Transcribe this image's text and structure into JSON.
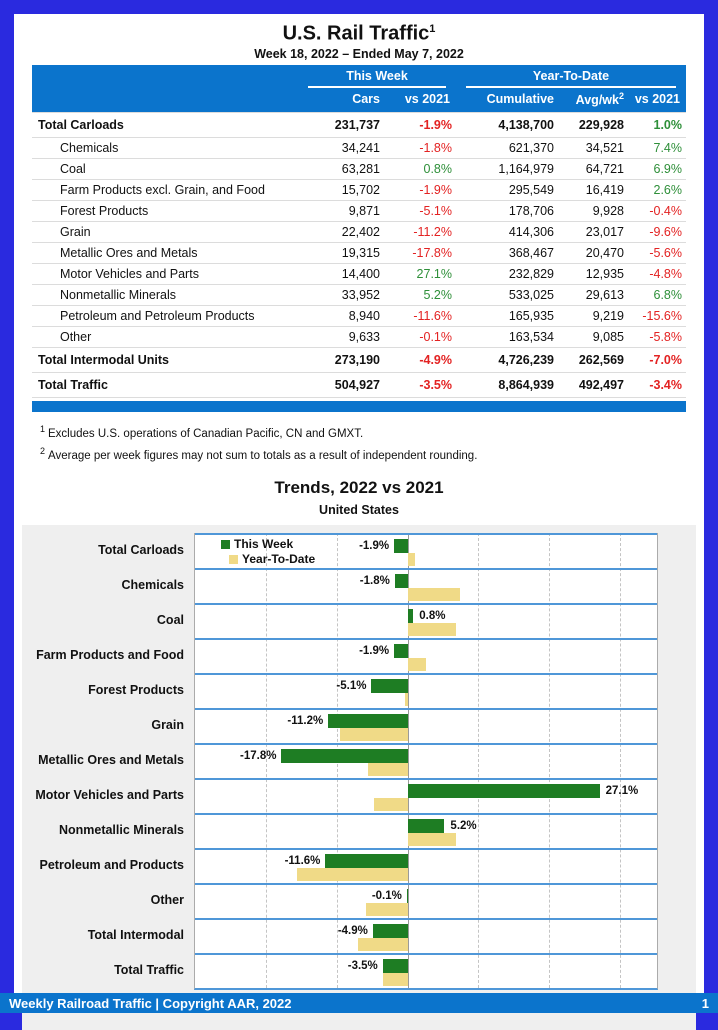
{
  "page": {
    "title": "U.S. Rail Traffic",
    "title_sup": "1",
    "subtitle": "Week 18, 2022 – Ended May 7, 2022"
  },
  "table": {
    "group_headers": {
      "this_week": "This Week",
      "year_to_date": "Year-To-Date"
    },
    "columns": {
      "cars": "Cars",
      "week_vs": "vs 2021",
      "cumulative": "Cumulative",
      "avg_wk": "Avg/wk",
      "avg_wk_sup": "2",
      "ytd_vs": "vs 2021"
    },
    "rows": [
      {
        "label": "Total Carloads",
        "bold": true,
        "indent": false,
        "cars": "231,737",
        "wk_pct": "-1.9%",
        "cumulative": "4,138,700",
        "avg_wk": "229,928",
        "ytd_pct": "1.0%"
      },
      {
        "label": "Chemicals",
        "bold": false,
        "indent": true,
        "cars": "34,241",
        "wk_pct": "-1.8%",
        "cumulative": "621,370",
        "avg_wk": "34,521",
        "ytd_pct": "7.4%"
      },
      {
        "label": "Coal",
        "bold": false,
        "indent": true,
        "cars": "63,281",
        "wk_pct": "0.8%",
        "cumulative": "1,164,979",
        "avg_wk": "64,721",
        "ytd_pct": "6.9%"
      },
      {
        "label": "Farm Products excl. Grain, and Food",
        "bold": false,
        "indent": true,
        "cars": "15,702",
        "wk_pct": "-1.9%",
        "cumulative": "295,549",
        "avg_wk": "16,419",
        "ytd_pct": "2.6%"
      },
      {
        "label": "Forest Products",
        "bold": false,
        "indent": true,
        "cars": "9,871",
        "wk_pct": "-5.1%",
        "cumulative": "178,706",
        "avg_wk": "9,928",
        "ytd_pct": "-0.4%"
      },
      {
        "label": "Grain",
        "bold": false,
        "indent": true,
        "cars": "22,402",
        "wk_pct": "-11.2%",
        "cumulative": "414,306",
        "avg_wk": "23,017",
        "ytd_pct": "-9.6%"
      },
      {
        "label": "Metallic Ores and Metals",
        "bold": false,
        "indent": true,
        "cars": "19,315",
        "wk_pct": "-17.8%",
        "cumulative": "368,467",
        "avg_wk": "20,470",
        "ytd_pct": "-5.6%"
      },
      {
        "label": "Motor Vehicles and Parts",
        "bold": false,
        "indent": true,
        "cars": "14,400",
        "wk_pct": "27.1%",
        "cumulative": "232,829",
        "avg_wk": "12,935",
        "ytd_pct": "-4.8%"
      },
      {
        "label": "Nonmetallic Minerals",
        "bold": false,
        "indent": true,
        "cars": "33,952",
        "wk_pct": "5.2%",
        "cumulative": "533,025",
        "avg_wk": "29,613",
        "ytd_pct": "6.8%"
      },
      {
        "label": "Petroleum and Petroleum Products",
        "bold": false,
        "indent": true,
        "cars": "8,940",
        "wk_pct": "-11.6%",
        "cumulative": "165,935",
        "avg_wk": "9,219",
        "ytd_pct": "-15.6%"
      },
      {
        "label": "Other",
        "bold": false,
        "indent": true,
        "cars": "9,633",
        "wk_pct": "-0.1%",
        "cumulative": "163,534",
        "avg_wk": "9,085",
        "ytd_pct": "-5.8%"
      },
      {
        "label": "Total Intermodal Units",
        "bold": true,
        "indent": false,
        "cars": "273,190",
        "wk_pct": "-4.9%",
        "cumulative": "4,726,239",
        "avg_wk": "262,569",
        "ytd_pct": "-7.0%"
      },
      {
        "label": "Total Traffic",
        "bold": true,
        "indent": false,
        "cars": "504,927",
        "wk_pct": "-3.5%",
        "cumulative": "8,864,939",
        "avg_wk": "492,497",
        "ytd_pct": "-3.4%"
      }
    ]
  },
  "footnotes": [
    {
      "sup": "1",
      "text": "Excludes U.S. operations of Canadian Pacific, CN and GMXT."
    },
    {
      "sup": "2",
      "text": "Average per week figures may not sum to totals as a result of independent rounding."
    }
  ],
  "chart": {
    "title": "Trends, 2022 vs 2021",
    "subtitle": "United States",
    "legend": [
      {
        "label": "This Week",
        "color": "#1E7D23"
      },
      {
        "label": "Year-To-Date",
        "color": "#F0DA87"
      }
    ]
  },
  "chart_data": {
    "type": "bar",
    "orientation": "horizontal",
    "title": "Trends, 2022 vs 2021",
    "subtitle": "United States",
    "categories": [
      "Total Carloads",
      "Chemicals",
      "Coal",
      "Farm Products and Food",
      "Forest Products",
      "Grain",
      "Metallic Ores and Metals",
      "Motor Vehicles and Parts",
      "Nonmetallic Minerals",
      "Petroleum and Products",
      "Other",
      "Total Intermodal",
      "Total Traffic"
    ],
    "series": [
      {
        "name": "This Week",
        "color": "#1E7D23",
        "values": [
          -1.9,
          -1.8,
          0.8,
          -1.9,
          -5.1,
          -11.2,
          -17.8,
          27.1,
          5.2,
          -11.6,
          -0.1,
          -4.9,
          -3.5
        ],
        "data_labels": [
          "-1.9%",
          "-1.8%",
          "0.8%",
          "-1.9%",
          "-5.1%",
          "-11.2%",
          "-17.8%",
          "27.1%",
          "5.2%",
          "-11.6%",
          "-0.1%",
          "-4.9%",
          "-3.5%"
        ]
      },
      {
        "name": "Year-To-Date",
        "color": "#F0DA87",
        "values": [
          1.0,
          7.4,
          6.9,
          2.6,
          -0.4,
          -9.6,
          -5.6,
          -4.8,
          6.8,
          -15.6,
          -5.8,
          -7.0,
          -3.4
        ]
      }
    ],
    "xlim": [
      -30,
      35.2
    ],
    "ticks": [
      {
        "value": -30,
        "label": "-30%"
      },
      {
        "value": -20,
        "label": "-20%"
      },
      {
        "value": -10,
        "label": "-10%"
      },
      {
        "value": 0,
        "label": "0%"
      },
      {
        "value": 10,
        "label": "10%"
      },
      {
        "value": 20,
        "label": "20%"
      },
      {
        "value": 30,
        "label": "30%"
      }
    ],
    "grid": "vertical-dashed",
    "legend_position": "inside-top-left"
  },
  "footer": {
    "text": "Weekly Railroad Traffic | Copyright AAR, 2022",
    "page_number": "1"
  },
  "colors": {
    "frame_blue": "#2A2ADF",
    "header_blue": "#0B74CC",
    "band_separator_blue": "#4F97D8",
    "positive_green": "#2E8F39",
    "negative_red": "#E32222",
    "bar_green": "#1E7D23",
    "bar_tan": "#F0DA87"
  }
}
